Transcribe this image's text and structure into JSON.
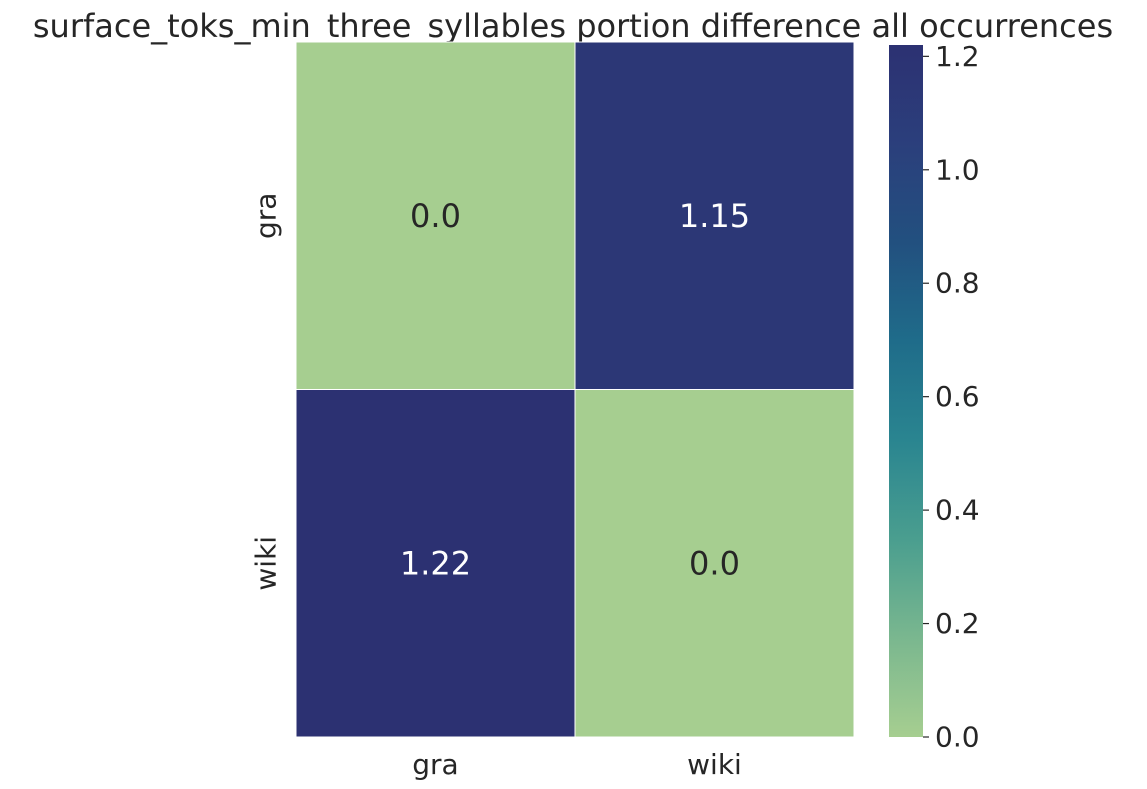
{
  "chart_data": {
    "type": "heatmap",
    "title": "surface_toks_min_three_syllables portion difference all occurrences",
    "rows": [
      "gra",
      "wiki"
    ],
    "cols": [
      "gra",
      "wiki"
    ],
    "values": [
      [
        0.0,
        1.15
      ],
      [
        1.22,
        0.0
      ]
    ],
    "annotations": [
      [
        "0.0",
        "1.15"
      ],
      [
        "1.22",
        "0.0"
      ]
    ],
    "colorbar": {
      "range": [
        0.0,
        1.22
      ],
      "ticks": [
        0.0,
        0.2,
        0.4,
        0.6,
        0.8,
        1.0,
        1.2
      ],
      "tick_labels": [
        "0.0",
        "0.2",
        "0.4",
        "0.6",
        "0.8",
        "1.0",
        "1.2"
      ]
    },
    "colormap": [
      "#a6ce90",
      "#7ab78f",
      "#4a9e8f",
      "#2a8590",
      "#1f6c8a",
      "#22507f",
      "#2b3f7c",
      "#2c3172"
    ],
    "annotation_colors": {
      "dark": "#262626",
      "light": "#ffffff"
    },
    "gridline_color": "#ffffff"
  }
}
